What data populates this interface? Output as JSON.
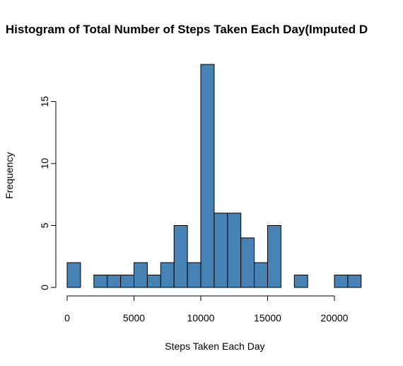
{
  "chart_data": {
    "type": "bar",
    "title": "Histogram of Total Number of Steps Taken Each Day(Imputed D",
    "xlabel": "Steps Taken Each Day",
    "ylabel": "Frequency",
    "bin_width": 1000,
    "bin_starts": [
      0,
      1000,
      2000,
      3000,
      4000,
      5000,
      6000,
      7000,
      8000,
      9000,
      10000,
      11000,
      12000,
      13000,
      14000,
      15000,
      16000,
      17000,
      18000,
      19000,
      20000,
      21000
    ],
    "values": [
      2,
      0,
      1,
      1,
      1,
      2,
      1,
      2,
      5,
      2,
      18,
      6,
      6,
      4,
      2,
      5,
      0,
      1,
      0,
      0,
      1,
      1
    ],
    "xticks": [
      0,
      5000,
      10000,
      15000,
      20000
    ],
    "yticks": [
      0,
      5,
      10,
      15
    ],
    "xlim": [
      0,
      22000
    ],
    "ylim": [
      0,
      18
    ],
    "grid": false,
    "bar_color": "#4682B4",
    "bar_edge_color": "#000000"
  }
}
